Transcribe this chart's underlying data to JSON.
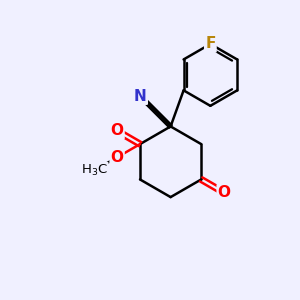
{
  "bg_color": "#f0f0ff",
  "line_color": "#000000",
  "bond_width": 1.8,
  "atom_colors": {
    "F": "#b8860b",
    "N": "#3333cc",
    "O": "#ff0000",
    "C": "#000000"
  },
  "font_size_atoms": 11,
  "xlim": [
    0,
    10
  ],
  "ylim": [
    0,
    10
  ]
}
